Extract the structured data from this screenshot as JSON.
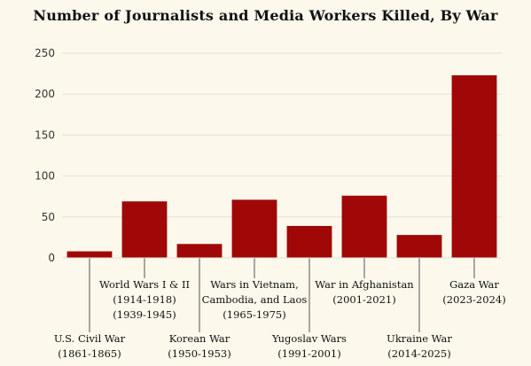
{
  "chart_data": {
    "type": "bar",
    "title": "Number of Journalists and Media Workers Killed, By War",
    "xlabel": "",
    "ylabel": "",
    "ylim": [
      0,
      250
    ],
    "yticks": [
      0,
      50,
      100,
      150,
      200,
      250
    ],
    "grid": true,
    "bar_color": "#a00707",
    "categories": [
      [
        "U.S. Civil War",
        "(1861-1865)"
      ],
      [
        "World Wars I & II",
        "(1914-1918)",
        "(1939-1945)"
      ],
      [
        "Korean War",
        "(1950-1953)"
      ],
      [
        "Wars in Vietnam,",
        "Cambodia, and Laos",
        "(1965-1975)"
      ],
      [
        "Yugoslav Wars",
        "(1991-2001)"
      ],
      [
        "War in Afghanistan",
        "(2001-2021)"
      ],
      [
        "Ukraine War",
        "(2014-2025)"
      ],
      [
        "Gaza War",
        "(2023-2024)"
      ]
    ],
    "values": [
      8,
      69,
      17,
      71,
      39,
      76,
      28,
      223
    ]
  }
}
